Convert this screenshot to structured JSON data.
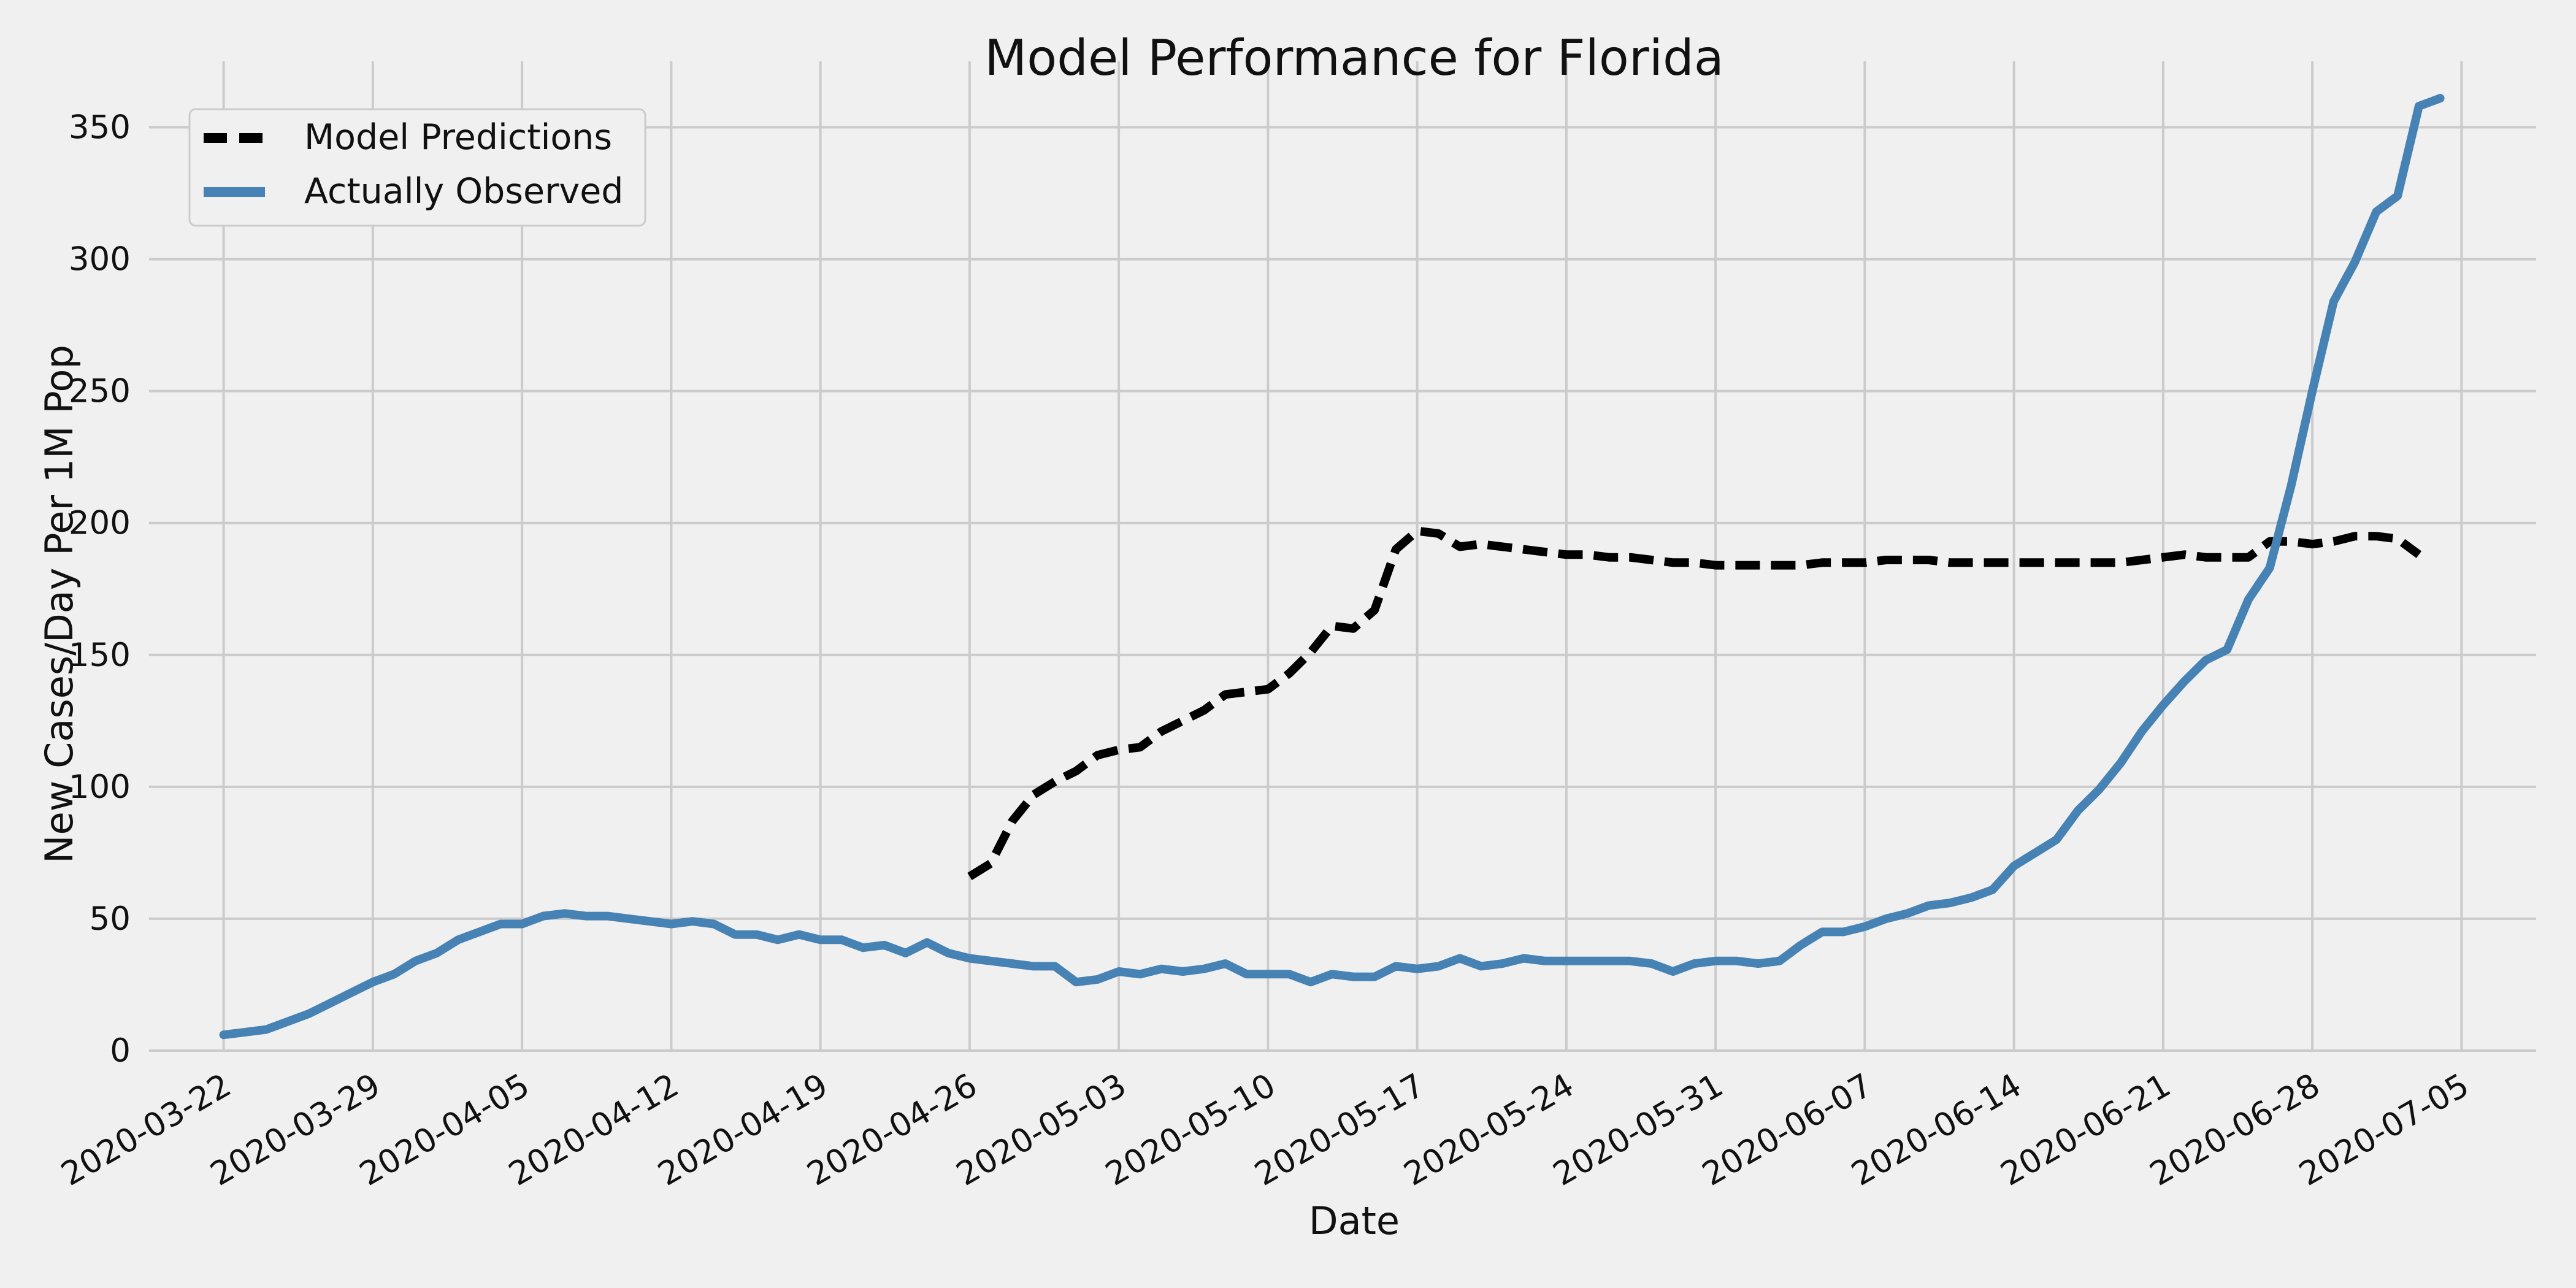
{
  "chart_data": {
    "type": "line",
    "title": "Model Performance for Florida",
    "xlabel": "Date",
    "ylabel": "New Cases/Day Per 1M Pop",
    "x_type": "date",
    "xlim": [
      "2020-03-22",
      "2020-07-05"
    ],
    "ylim": [
      0,
      375
    ],
    "x_ticks": [
      "2020-03-22",
      "2020-03-29",
      "2020-04-05",
      "2020-04-12",
      "2020-04-19",
      "2020-04-26",
      "2020-05-03",
      "2020-05-10",
      "2020-05-17",
      "2020-05-24",
      "2020-05-31",
      "2020-06-07",
      "2020-06-14",
      "2020-06-21",
      "2020-06-28",
      "2020-07-05"
    ],
    "y_ticks": [
      0,
      50,
      100,
      150,
      200,
      250,
      300,
      350
    ],
    "grid": true,
    "legend_position": "top-left",
    "background_color": "#f0f0f0",
    "grid_color": "#cbcbcb",
    "series": [
      {
        "name": "Model Predictions",
        "color": "#000000",
        "line_style": "dashed",
        "points": [
          {
            "x": "2020-04-26",
            "y": 66
          },
          {
            "x": "2020-04-27",
            "y": 71
          },
          {
            "x": "2020-04-28",
            "y": 87
          },
          {
            "x": "2020-04-29",
            "y": 97
          },
          {
            "x": "2020-04-30",
            "y": 102
          },
          {
            "x": "2020-05-01",
            "y": 106
          },
          {
            "x": "2020-05-02",
            "y": 112
          },
          {
            "x": "2020-05-03",
            "y": 114
          },
          {
            "x": "2020-05-04",
            "y": 115
          },
          {
            "x": "2020-05-05",
            "y": 121
          },
          {
            "x": "2020-05-06",
            "y": 125
          },
          {
            "x": "2020-05-07",
            "y": 129
          },
          {
            "x": "2020-05-08",
            "y": 135
          },
          {
            "x": "2020-05-09",
            "y": 136
          },
          {
            "x": "2020-05-10",
            "y": 137
          },
          {
            "x": "2020-05-11",
            "y": 143
          },
          {
            "x": "2020-05-12",
            "y": 151
          },
          {
            "x": "2020-05-13",
            "y": 161
          },
          {
            "x": "2020-05-14",
            "y": 160
          },
          {
            "x": "2020-05-15",
            "y": 167
          },
          {
            "x": "2020-05-16",
            "y": 190
          },
          {
            "x": "2020-05-17",
            "y": 197
          },
          {
            "x": "2020-05-18",
            "y": 196
          },
          {
            "x": "2020-05-19",
            "y": 191
          },
          {
            "x": "2020-05-20",
            "y": 192
          },
          {
            "x": "2020-05-21",
            "y": 191
          },
          {
            "x": "2020-05-22",
            "y": 190
          },
          {
            "x": "2020-05-23",
            "y": 189
          },
          {
            "x": "2020-05-24",
            "y": 188
          },
          {
            "x": "2020-05-25",
            "y": 188
          },
          {
            "x": "2020-05-26",
            "y": 187
          },
          {
            "x": "2020-05-27",
            "y": 187
          },
          {
            "x": "2020-05-28",
            "y": 186
          },
          {
            "x": "2020-05-29",
            "y": 185
          },
          {
            "x": "2020-05-30",
            "y": 185
          },
          {
            "x": "2020-05-31",
            "y": 184
          },
          {
            "x": "2020-06-01",
            "y": 184
          },
          {
            "x": "2020-06-02",
            "y": 184
          },
          {
            "x": "2020-06-03",
            "y": 184
          },
          {
            "x": "2020-06-04",
            "y": 184
          },
          {
            "x": "2020-06-05",
            "y": 185
          },
          {
            "x": "2020-06-06",
            "y": 185
          },
          {
            "x": "2020-06-07",
            "y": 185
          },
          {
            "x": "2020-06-08",
            "y": 186
          },
          {
            "x": "2020-06-09",
            "y": 186
          },
          {
            "x": "2020-06-10",
            "y": 186
          },
          {
            "x": "2020-06-11",
            "y": 185
          },
          {
            "x": "2020-06-12",
            "y": 185
          },
          {
            "x": "2020-06-13",
            "y": 185
          },
          {
            "x": "2020-06-14",
            "y": 185
          },
          {
            "x": "2020-06-15",
            "y": 185
          },
          {
            "x": "2020-06-16",
            "y": 185
          },
          {
            "x": "2020-06-17",
            "y": 185
          },
          {
            "x": "2020-06-18",
            "y": 185
          },
          {
            "x": "2020-06-19",
            "y": 185
          },
          {
            "x": "2020-06-20",
            "y": 186
          },
          {
            "x": "2020-06-21",
            "y": 187
          },
          {
            "x": "2020-06-22",
            "y": 188
          },
          {
            "x": "2020-06-23",
            "y": 187
          },
          {
            "x": "2020-06-24",
            "y": 187
          },
          {
            "x": "2020-06-25",
            "y": 187
          },
          {
            "x": "2020-06-26",
            "y": 193
          },
          {
            "x": "2020-06-27",
            "y": 193
          },
          {
            "x": "2020-06-28",
            "y": 192
          },
          {
            "x": "2020-06-29",
            "y": 193
          },
          {
            "x": "2020-06-30",
            "y": 195
          },
          {
            "x": "2020-07-01",
            "y": 195
          },
          {
            "x": "2020-07-02",
            "y": 194
          },
          {
            "x": "2020-07-03",
            "y": 188
          }
        ]
      },
      {
        "name": "Actually Observed",
        "color": "#4682b4",
        "line_style": "solid",
        "points": [
          {
            "x": "2020-03-22",
            "y": 6
          },
          {
            "x": "2020-03-23",
            "y": 7
          },
          {
            "x": "2020-03-24",
            "y": 8
          },
          {
            "x": "2020-03-25",
            "y": 11
          },
          {
            "x": "2020-03-26",
            "y": 14
          },
          {
            "x": "2020-03-27",
            "y": 18
          },
          {
            "x": "2020-03-28",
            "y": 22
          },
          {
            "x": "2020-03-29",
            "y": 26
          },
          {
            "x": "2020-03-30",
            "y": 29
          },
          {
            "x": "2020-03-31",
            "y": 34
          },
          {
            "x": "2020-04-01",
            "y": 37
          },
          {
            "x": "2020-04-02",
            "y": 42
          },
          {
            "x": "2020-04-03",
            "y": 45
          },
          {
            "x": "2020-04-04",
            "y": 48
          },
          {
            "x": "2020-04-05",
            "y": 48
          },
          {
            "x": "2020-04-06",
            "y": 51
          },
          {
            "x": "2020-04-07",
            "y": 52
          },
          {
            "x": "2020-04-08",
            "y": 51
          },
          {
            "x": "2020-04-09",
            "y": 51
          },
          {
            "x": "2020-04-10",
            "y": 50
          },
          {
            "x": "2020-04-11",
            "y": 49
          },
          {
            "x": "2020-04-12",
            "y": 48
          },
          {
            "x": "2020-04-13",
            "y": 49
          },
          {
            "x": "2020-04-14",
            "y": 48
          },
          {
            "x": "2020-04-15",
            "y": 44
          },
          {
            "x": "2020-04-16",
            "y": 44
          },
          {
            "x": "2020-04-17",
            "y": 42
          },
          {
            "x": "2020-04-18",
            "y": 44
          },
          {
            "x": "2020-04-19",
            "y": 42
          },
          {
            "x": "2020-04-20",
            "y": 42
          },
          {
            "x": "2020-04-21",
            "y": 39
          },
          {
            "x": "2020-04-22",
            "y": 40
          },
          {
            "x": "2020-04-23",
            "y": 37
          },
          {
            "x": "2020-04-24",
            "y": 41
          },
          {
            "x": "2020-04-25",
            "y": 37
          },
          {
            "x": "2020-04-26",
            "y": 35
          },
          {
            "x": "2020-04-27",
            "y": 34
          },
          {
            "x": "2020-04-28",
            "y": 33
          },
          {
            "x": "2020-04-29",
            "y": 32
          },
          {
            "x": "2020-04-30",
            "y": 32
          },
          {
            "x": "2020-05-01",
            "y": 26
          },
          {
            "x": "2020-05-02",
            "y": 27
          },
          {
            "x": "2020-05-03",
            "y": 30
          },
          {
            "x": "2020-05-04",
            "y": 29
          },
          {
            "x": "2020-05-05",
            "y": 31
          },
          {
            "x": "2020-05-06",
            "y": 30
          },
          {
            "x": "2020-05-07",
            "y": 31
          },
          {
            "x": "2020-05-08",
            "y": 33
          },
          {
            "x": "2020-05-09",
            "y": 29
          },
          {
            "x": "2020-05-10",
            "y": 29
          },
          {
            "x": "2020-05-11",
            "y": 29
          },
          {
            "x": "2020-05-12",
            "y": 26
          },
          {
            "x": "2020-05-13",
            "y": 29
          },
          {
            "x": "2020-05-14",
            "y": 28
          },
          {
            "x": "2020-05-15",
            "y": 28
          },
          {
            "x": "2020-05-16",
            "y": 32
          },
          {
            "x": "2020-05-17",
            "y": 31
          },
          {
            "x": "2020-05-18",
            "y": 32
          },
          {
            "x": "2020-05-19",
            "y": 35
          },
          {
            "x": "2020-05-20",
            "y": 32
          },
          {
            "x": "2020-05-21",
            "y": 33
          },
          {
            "x": "2020-05-22",
            "y": 35
          },
          {
            "x": "2020-05-23",
            "y": 34
          },
          {
            "x": "2020-05-24",
            "y": 34
          },
          {
            "x": "2020-05-25",
            "y": 34
          },
          {
            "x": "2020-05-26",
            "y": 34
          },
          {
            "x": "2020-05-27",
            "y": 34
          },
          {
            "x": "2020-05-28",
            "y": 33
          },
          {
            "x": "2020-05-29",
            "y": 30
          },
          {
            "x": "2020-05-30",
            "y": 33
          },
          {
            "x": "2020-05-31",
            "y": 34
          },
          {
            "x": "2020-06-01",
            "y": 34
          },
          {
            "x": "2020-06-02",
            "y": 33
          },
          {
            "x": "2020-06-03",
            "y": 34
          },
          {
            "x": "2020-06-04",
            "y": 40
          },
          {
            "x": "2020-06-05",
            "y": 45
          },
          {
            "x": "2020-06-06",
            "y": 45
          },
          {
            "x": "2020-06-07",
            "y": 47
          },
          {
            "x": "2020-06-08",
            "y": 50
          },
          {
            "x": "2020-06-09",
            "y": 52
          },
          {
            "x": "2020-06-10",
            "y": 55
          },
          {
            "x": "2020-06-11",
            "y": 56
          },
          {
            "x": "2020-06-12",
            "y": 58
          },
          {
            "x": "2020-06-13",
            "y": 61
          },
          {
            "x": "2020-06-14",
            "y": 70
          },
          {
            "x": "2020-06-15",
            "y": 75
          },
          {
            "x": "2020-06-16",
            "y": 80
          },
          {
            "x": "2020-06-17",
            "y": 91
          },
          {
            "x": "2020-06-18",
            "y": 99
          },
          {
            "x": "2020-06-19",
            "y": 109
          },
          {
            "x": "2020-06-20",
            "y": 121
          },
          {
            "x": "2020-06-21",
            "y": 131
          },
          {
            "x": "2020-06-22",
            "y": 140
          },
          {
            "x": "2020-06-23",
            "y": 148
          },
          {
            "x": "2020-06-24",
            "y": 152
          },
          {
            "x": "2020-06-25",
            "y": 171
          },
          {
            "x": "2020-06-26",
            "y": 183
          },
          {
            "x": "2020-06-27",
            "y": 214
          },
          {
            "x": "2020-06-28",
            "y": 250
          },
          {
            "x": "2020-06-29",
            "y": 284
          },
          {
            "x": "2020-06-30",
            "y": 299
          },
          {
            "x": "2020-07-01",
            "y": 318
          },
          {
            "x": "2020-07-02",
            "y": 324
          },
          {
            "x": "2020-07-03",
            "y": 358
          },
          {
            "x": "2020-07-04",
            "y": 361
          }
        ]
      }
    ]
  }
}
